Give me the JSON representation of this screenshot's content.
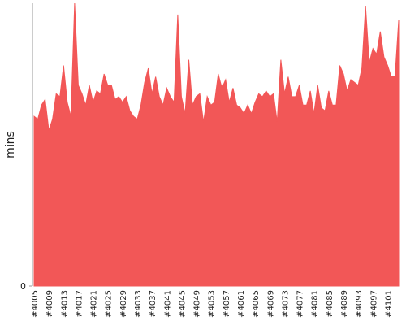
{
  "chart_data": {
    "type": "area",
    "y_label": "mins",
    "color": "#f25757",
    "categories": [
      "#4005",
      null,
      null,
      null,
      "#4009",
      null,
      null,
      null,
      "#4013",
      null,
      null,
      null,
      "#4017",
      null,
      null,
      null,
      "#4021",
      null,
      null,
      null,
      "#4025",
      null,
      null,
      null,
      "#4029",
      null,
      null,
      null,
      "#4033",
      null,
      null,
      null,
      "#4037",
      null,
      null,
      null,
      "#4041",
      null,
      null,
      null,
      "#4045",
      null,
      null,
      null,
      "#4049",
      null,
      null,
      null,
      "#4053",
      null,
      null,
      null,
      "#4057",
      null,
      null,
      null,
      "#4061",
      null,
      null,
      null,
      "#4065",
      null,
      null,
      null,
      "#4069",
      null,
      null,
      null,
      "#4073",
      null,
      null,
      null,
      "#4077",
      null,
      null,
      null,
      "#4081",
      null,
      null,
      null,
      "#4085",
      null,
      null,
      null,
      "#4089",
      null,
      null,
      null,
      "#4093",
      null,
      null,
      null,
      "#4097",
      null,
      null,
      null,
      "#4101",
      null,
      null,
      null
    ],
    "values": [
      60,
      59,
      64,
      66,
      55,
      59,
      68,
      67,
      78,
      65,
      60,
      100,
      71,
      68,
      64,
      71,
      65,
      69,
      68,
      75,
      71,
      71,
      66,
      67,
      65,
      67,
      62,
      60,
      59,
      64,
      72,
      77,
      68,
      74,
      67,
      64,
      70,
      67,
      65,
      96,
      67,
      61,
      80,
      64,
      67,
      68,
      58,
      67,
      64,
      65,
      75,
      70,
      73,
      65,
      70,
      64,
      63,
      61,
      64,
      61,
      65,
      68,
      67,
      69,
      67,
      68,
      58,
      80,
      68,
      74,
      67,
      67,
      71,
      64,
      64,
      69,
      61,
      71,
      63,
      62,
      69,
      64,
      64,
      78,
      75,
      69,
      73,
      72,
      71,
      77,
      99,
      79,
      84,
      82,
      90,
      81,
      78,
      74,
      74,
      94
    ],
    "ylim": [
      0,
      100
    ],
    "yticks": [
      0
    ]
  }
}
